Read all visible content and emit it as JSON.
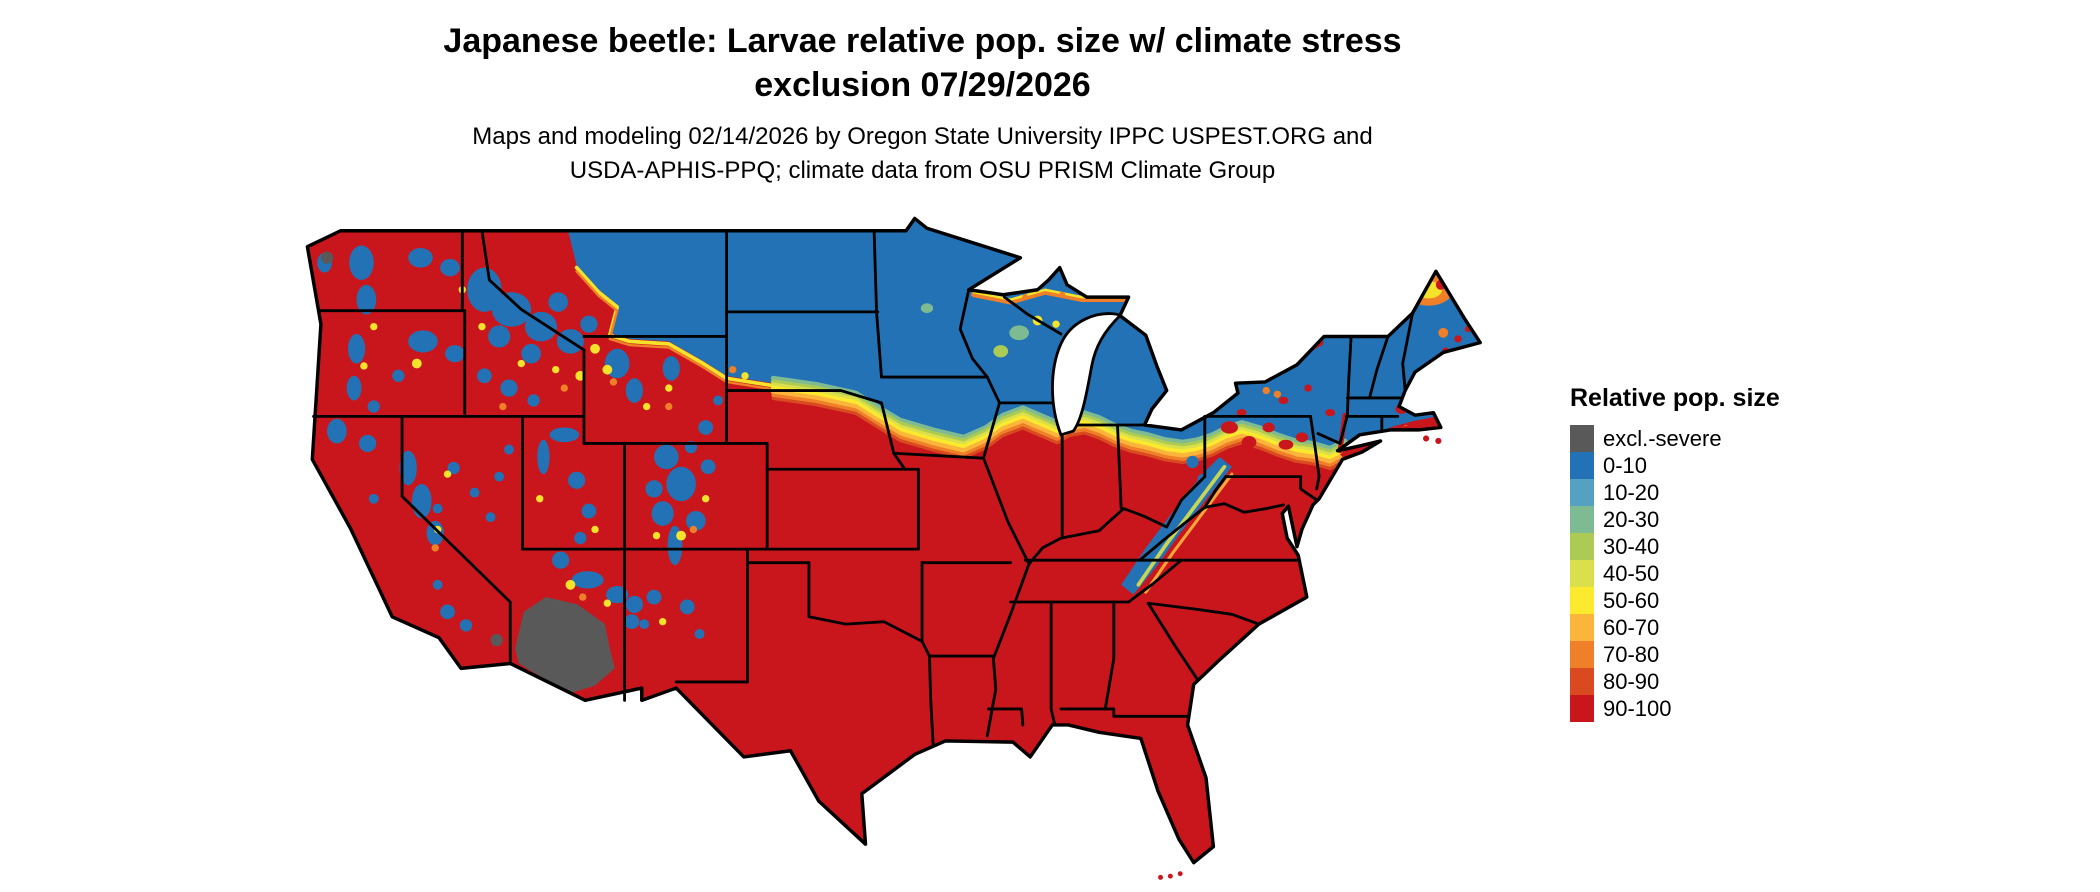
{
  "header": {
    "title_line1": "Japanese beetle: Larvae relative pop. size w/ climate stress",
    "title_line2": "exclusion 07/29/2026",
    "subtitle_line1": "Maps and modeling 02/14/2026 by Oregon State University IPPC USPEST.ORG and",
    "subtitle_line2": "USDA-APHIS-PPQ; climate data from OSU PRISM Climate Group"
  },
  "map": {
    "region": "Conterminous United States"
  },
  "legend": {
    "title": "Relative pop. size",
    "items": [
      {
        "label": "excl.-severe",
        "color": "#595959"
      },
      {
        "label": "0-10",
        "color": "#2272b5"
      },
      {
        "label": "10-20",
        "color": "#55a1c2"
      },
      {
        "label": "20-30",
        "color": "#7fbb92"
      },
      {
        "label": "30-40",
        "color": "#accb55"
      },
      {
        "label": "40-50",
        "color": "#d9e04b"
      },
      {
        "label": "50-60",
        "color": "#fdea2e"
      },
      {
        "label": "60-70",
        "color": "#fcb53b"
      },
      {
        "label": "70-80",
        "color": "#ef7f28"
      },
      {
        "label": "80-90",
        "color": "#d94a20"
      },
      {
        "label": "90-100",
        "color": "#c9161d"
      }
    ]
  }
}
